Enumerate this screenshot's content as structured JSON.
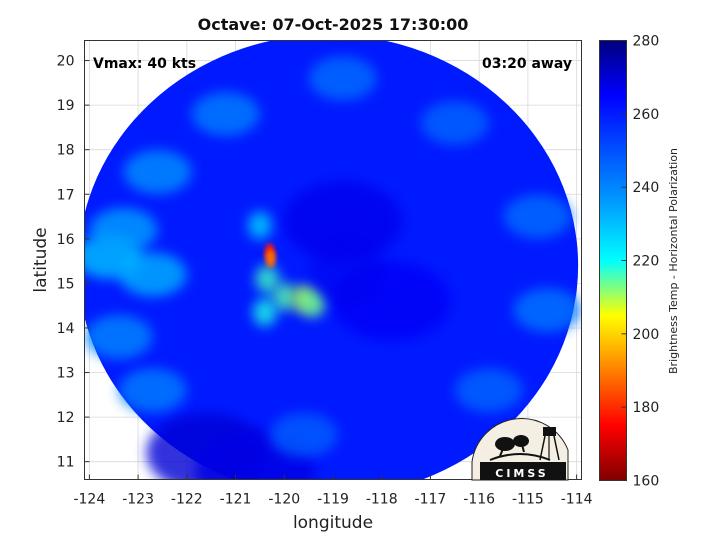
{
  "title": "Octave: 07-Oct-2025 17:30:00",
  "annotations": {
    "vmax": "Vmax: 40 kts",
    "time_away": "03:20 away"
  },
  "axes": {
    "xlabel": "longitude",
    "ylabel": "latitude",
    "xlim": [
      -124.1,
      -113.9
    ],
    "ylim": [
      10.6,
      20.45
    ],
    "xticks": [
      -124,
      -123,
      -122,
      -121,
      -120,
      -119,
      -118,
      -117,
      -116,
      -115,
      -114
    ],
    "xtick_labels": [
      "-124",
      "-123",
      "-122",
      "-121",
      "-120",
      "-119",
      "-118",
      "-117",
      "-116",
      "-115",
      "-114"
    ],
    "yticks": [
      11,
      12,
      13,
      14,
      15,
      16,
      17,
      18,
      19,
      20
    ],
    "ytick_labels": [
      "11",
      "12",
      "13",
      "14",
      "15",
      "16",
      "17",
      "18",
      "19",
      "20"
    ],
    "grid": true
  },
  "colorbar": {
    "label": "Brightness Temp - Horizontal Polarization",
    "range": [
      160,
      280
    ],
    "ticks": [
      160,
      180,
      200,
      220,
      240,
      260,
      280
    ],
    "tick_labels": [
      "160",
      "180",
      "200",
      "220",
      "240",
      "260",
      "280"
    ],
    "colormap": "jet"
  },
  "logo": {
    "text": "CIMSS"
  },
  "chart_data": {
    "type": "heatmap",
    "title": "Octave: 07-Oct-2025 17:30:00",
    "xlabel": "longitude",
    "ylabel": "latitude",
    "xlim": [
      -124.1,
      -113.9
    ],
    "ylim": [
      10.6,
      20.45
    ],
    "value_range": [
      160,
      280
    ],
    "value_label": "Brightness Temp - Horizontal Polarization",
    "swath_center": {
      "lon": -119.1,
      "lat": 15.4
    },
    "background_value": 262,
    "storm_center": {
      "lon": -118.7,
      "lat": 15.3
    },
    "features": [
      {
        "kind": "convective-core",
        "lon": -120.3,
        "lat": 15.7,
        "value": 178
      },
      {
        "kind": "convective-core",
        "lon": -120.28,
        "lat": 15.55,
        "value": 188
      },
      {
        "kind": "warm-band",
        "lon": -120.35,
        "lat": 15.1,
        "value": 228
      },
      {
        "kind": "warm-band",
        "lon": -120.0,
        "lat": 14.7,
        "value": 225
      },
      {
        "kind": "warm-band",
        "lon": -119.6,
        "lat": 14.65,
        "value": 215
      },
      {
        "kind": "warm-band",
        "lon": -119.4,
        "lat": 14.55,
        "value": 222
      },
      {
        "kind": "warm-band",
        "lon": -120.4,
        "lat": 14.35,
        "value": 232
      },
      {
        "kind": "warm-band",
        "lon": -120.5,
        "lat": 16.3,
        "value": 240
      },
      {
        "kind": "outer-band",
        "lon": -123.6,
        "lat": 15.6,
        "value": 242
      },
      {
        "kind": "outer-band",
        "lon": -123.3,
        "lat": 16.2,
        "value": 246
      },
      {
        "kind": "outer-band",
        "lon": -122.7,
        "lat": 15.2,
        "value": 244
      },
      {
        "kind": "outer-band",
        "lon": -122.6,
        "lat": 17.5,
        "value": 248
      },
      {
        "kind": "outer-band",
        "lon": -121.2,
        "lat": 18.8,
        "value": 250
      },
      {
        "kind": "outer-band",
        "lon": -118.8,
        "lat": 19.6,
        "value": 252
      },
      {
        "kind": "outer-band",
        "lon": -116.5,
        "lat": 18.6,
        "value": 253
      },
      {
        "kind": "outer-band",
        "lon": -114.8,
        "lat": 16.5,
        "value": 252
      },
      {
        "kind": "outer-band",
        "lon": -114.6,
        "lat": 14.4,
        "value": 251
      },
      {
        "kind": "outer-band",
        "lon": -115.8,
        "lat": 12.6,
        "value": 253
      },
      {
        "kind": "outer-band",
        "lon": -119.6,
        "lat": 11.6,
        "value": 254
      },
      {
        "kind": "outer-band",
        "lon": -122.7,
        "lat": 12.6,
        "value": 250
      },
      {
        "kind": "outer-band",
        "lon": -123.4,
        "lat": 13.8,
        "value": 249
      },
      {
        "kind": "cold-region",
        "lon": -121.6,
        "lat": 11.2,
        "value": 270
      },
      {
        "kind": "cold-region",
        "lon": -120.6,
        "lat": 10.8,
        "value": 268
      },
      {
        "kind": "cold-region",
        "lon": -118.8,
        "lat": 16.4,
        "value": 267
      },
      {
        "kind": "cold-region",
        "lon": -117.8,
        "lat": 14.6,
        "value": 266
      }
    ]
  }
}
